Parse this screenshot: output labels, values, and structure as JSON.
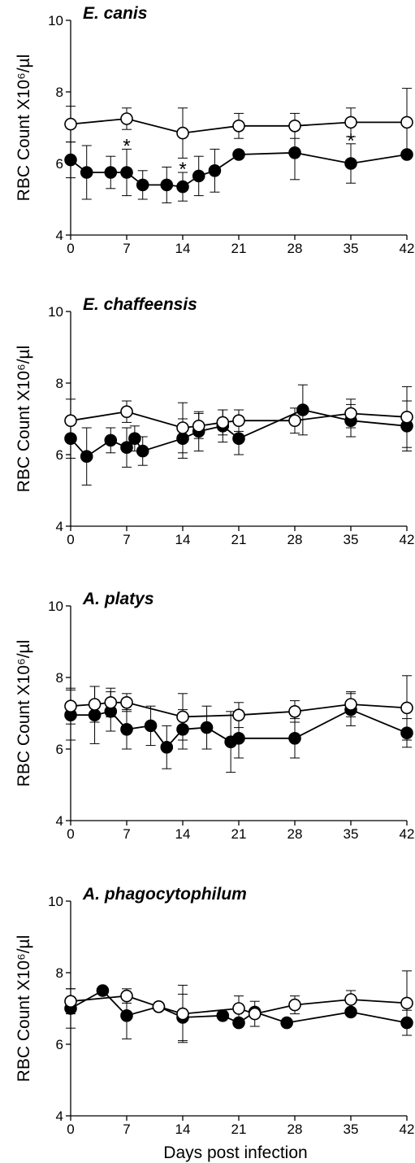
{
  "figure": {
    "xlabel": "Days post infection"
  },
  "chart_data": [
    {
      "type": "line",
      "title": "E. canis",
      "ylabel": "RBC Count X10⁶/µl",
      "xlabel": "",
      "xlim": [
        0,
        42
      ],
      "ylim": [
        4,
        10
      ],
      "xticks": [
        0,
        7,
        14,
        21,
        28,
        35,
        42
      ],
      "yticks": [
        4,
        6,
        8,
        10
      ],
      "grid": false,
      "series": [
        {
          "marker": "open-circle",
          "points": [
            {
              "x": 0,
              "y": 7.1,
              "err": 0.5
            },
            {
              "x": 7,
              "y": 7.25,
              "err": 0.3
            },
            {
              "x": 14,
              "y": 6.85,
              "err": 0.7
            },
            {
              "x": 21,
              "y": 7.05,
              "err": 0.35
            },
            {
              "x": 28,
              "y": 7.05,
              "err": 0.35
            },
            {
              "x": 35,
              "y": 7.15,
              "err": 0.4
            },
            {
              "x": 42,
              "y": 7.15,
              "err": 0.95
            }
          ]
        },
        {
          "marker": "filled-circle",
          "points": [
            {
              "x": 0,
              "y": 6.1,
              "err": 0.5
            },
            {
              "x": 2,
              "y": 5.75,
              "err": 0.75
            },
            {
              "x": 5,
              "y": 5.75,
              "err": 0.45
            },
            {
              "x": 7,
              "y": 5.75,
              "err": 0.65
            },
            {
              "x": 9,
              "y": 5.4,
              "err": 0.4
            },
            {
              "x": 12,
              "y": 5.4,
              "err": 0.5
            },
            {
              "x": 14,
              "y": 5.35,
              "err": 0.4
            },
            {
              "x": 16,
              "y": 5.65,
              "err": 0.55
            },
            {
              "x": 18,
              "y": 5.8,
              "err": 0.6
            },
            {
              "x": 21,
              "y": 6.25,
              "err": 0.05
            },
            {
              "x": 28,
              "y": 6.3,
              "err": 0.75
            },
            {
              "x": 35,
              "y": 6.0,
              "err": 0.55
            },
            {
              "x": 42,
              "y": 6.25,
              "err": 0.05
            }
          ]
        }
      ],
      "significance": [
        {
          "x": 7,
          "text": "*"
        },
        {
          "x": 14,
          "text": "*"
        },
        {
          "x": 35,
          "text": "*"
        }
      ]
    },
    {
      "type": "line",
      "title": "E. chaffeensis",
      "ylabel": "RBC Count X10⁶/µl",
      "xlabel": "",
      "xlim": [
        0,
        42
      ],
      "ylim": [
        4,
        10
      ],
      "xticks": [
        0,
        7,
        14,
        21,
        28,
        35,
        42
      ],
      "yticks": [
        4,
        6,
        8,
        10
      ],
      "grid": false,
      "series": [
        {
          "marker": "open-circle",
          "points": [
            {
              "x": 0,
              "y": 6.95,
              "err": 0.6
            },
            {
              "x": 7,
              "y": 7.2,
              "err": 0.3
            },
            {
              "x": 14,
              "y": 6.75,
              "err": 0.7
            },
            {
              "x": 16,
              "y": 6.8,
              "err": 0.35
            },
            {
              "x": 19,
              "y": 6.9,
              "err": 0.35
            },
            {
              "x": 21,
              "y": 6.95,
              "err": 0.3
            },
            {
              "x": 28,
              "y": 6.95,
              "err": 0.35
            },
            {
              "x": 35,
              "y": 7.15,
              "err": 0.4
            },
            {
              "x": 42,
              "y": 7.05,
              "err": 0.85
            }
          ]
        },
        {
          "marker": "filled-circle",
          "points": [
            {
              "x": 0,
              "y": 6.45,
              "err": 0.55
            },
            {
              "x": 2,
              "y": 5.95,
              "err": 0.8
            },
            {
              "x": 5,
              "y": 6.4,
              "err": 0.35
            },
            {
              "x": 7,
              "y": 6.2,
              "err": 0.55
            },
            {
              "x": 8,
              "y": 6.45,
              "err": 0.35
            },
            {
              "x": 9,
              "y": 6.1,
              "err": 0.4
            },
            {
              "x": 14,
              "y": 6.45,
              "err": 0.55
            },
            {
              "x": 16,
              "y": 6.65,
              "err": 0.55
            },
            {
              "x": 19,
              "y": 6.8,
              "err": 0.45
            },
            {
              "x": 21,
              "y": 6.45,
              "err": 0.45
            },
            {
              "x": 29,
              "y": 7.25,
              "err": 0.7
            },
            {
              "x": 35,
              "y": 6.95,
              "err": 0.45
            },
            {
              "x": 42,
              "y": 6.8,
              "err": 0.7
            }
          ]
        }
      ],
      "significance": []
    },
    {
      "type": "line",
      "title": "A. platys",
      "ylabel": "RBC Count X10⁶/µl",
      "xlabel": "",
      "xlim": [
        0,
        42
      ],
      "ylim": [
        4,
        10
      ],
      "xticks": [
        0,
        7,
        14,
        21,
        28,
        35,
        42
      ],
      "yticks": [
        4,
        6,
        8,
        10
      ],
      "grid": false,
      "series": [
        {
          "marker": "open-circle",
          "points": [
            {
              "x": 0,
              "y": 7.2,
              "err": 0.5
            },
            {
              "x": 3,
              "y": 7.25,
              "err": 0.5
            },
            {
              "x": 5,
              "y": 7.3,
              "err": 0.4
            },
            {
              "x": 7,
              "y": 7.3,
              "err": 0.25
            },
            {
              "x": 14,
              "y": 6.9,
              "err": 0.65
            },
            {
              "x": 21,
              "y": 6.95,
              "err": 0.35
            },
            {
              "x": 28,
              "y": 7.05,
              "err": 0.3
            },
            {
              "x": 35,
              "y": 7.25,
              "err": 0.35
            },
            {
              "x": 42,
              "y": 7.15,
              "err": 0.9
            }
          ]
        },
        {
          "marker": "filled-circle",
          "points": [
            {
              "x": 0,
              "y": 6.95,
              "err": 0.7
            },
            {
              "x": 3,
              "y": 6.95,
              "err": 0.8
            },
            {
              "x": 5,
              "y": 7.05,
              "err": 0.55
            },
            {
              "x": 7,
              "y": 6.55,
              "err": 0.55
            },
            {
              "x": 10,
              "y": 6.65,
              "err": 0.55
            },
            {
              "x": 12,
              "y": 6.05,
              "err": 0.6
            },
            {
              "x": 14,
              "y": 6.55,
              "err": 0.55
            },
            {
              "x": 17,
              "y": 6.6,
              "err": 0.6
            },
            {
              "x": 20,
              "y": 6.2,
              "err": 0.85
            },
            {
              "x": 21,
              "y": 6.3,
              "err": 0.55
            },
            {
              "x": 28,
              "y": 6.3,
              "err": 0.55
            },
            {
              "x": 35,
              "y": 7.1,
              "err": 0.45
            },
            {
              "x": 42,
              "y": 6.45,
              "err": 0.4
            }
          ]
        }
      ],
      "significance": []
    },
    {
      "type": "line",
      "title": "A. phagocytophilum",
      "ylabel": "RBC Count X10⁶/µl",
      "xlabel": "Days post infection",
      "xlim": [
        0,
        42
      ],
      "ylim": [
        4,
        10
      ],
      "xticks": [
        0,
        7,
        14,
        21,
        28,
        35,
        42
      ],
      "yticks": [
        4,
        6,
        8,
        10
      ],
      "grid": false,
      "series": [
        {
          "marker": "open-circle",
          "points": [
            {
              "x": 0,
              "y": 7.2,
              "err": 0.35
            },
            {
              "x": 7,
              "y": 7.35,
              "err": 0.2
            },
            {
              "x": 11,
              "y": 7.05,
              "err": 0.1
            },
            {
              "x": 14,
              "y": 6.85,
              "err": 0.8
            },
            {
              "x": 21,
              "y": 7.0,
              "err": 0.35
            },
            {
              "x": 23,
              "y": 6.85,
              "err": 0.35
            },
            {
              "x": 28,
              "y": 7.1,
              "err": 0.25
            },
            {
              "x": 35,
              "y": 7.25,
              "err": 0.25
            },
            {
              "x": 42,
              "y": 7.15,
              "err": 0.9
            }
          ]
        },
        {
          "marker": "filled-circle",
          "points": [
            {
              "x": 0,
              "y": 7.0,
              "err": 0.55
            },
            {
              "x": 4,
              "y": 7.5,
              "err": 0.05
            },
            {
              "x": 7,
              "y": 6.8,
              "err": 0.65
            },
            {
              "x": 11,
              "y": 7.05,
              "err": 0.05
            },
            {
              "x": 14,
              "y": 6.75,
              "err": 0.65
            },
            {
              "x": 19,
              "y": 6.8,
              "err": 0.05
            },
            {
              "x": 21,
              "y": 6.6,
              "err": 0.05
            },
            {
              "x": 23,
              "y": 6.9,
              "err": 0.05
            },
            {
              "x": 27,
              "y": 6.6,
              "err": 0.05
            },
            {
              "x": 35,
              "y": 6.9,
              "err": 0.05
            },
            {
              "x": 42,
              "y": 6.6,
              "err": 0.35
            }
          ]
        }
      ],
      "significance": []
    }
  ]
}
